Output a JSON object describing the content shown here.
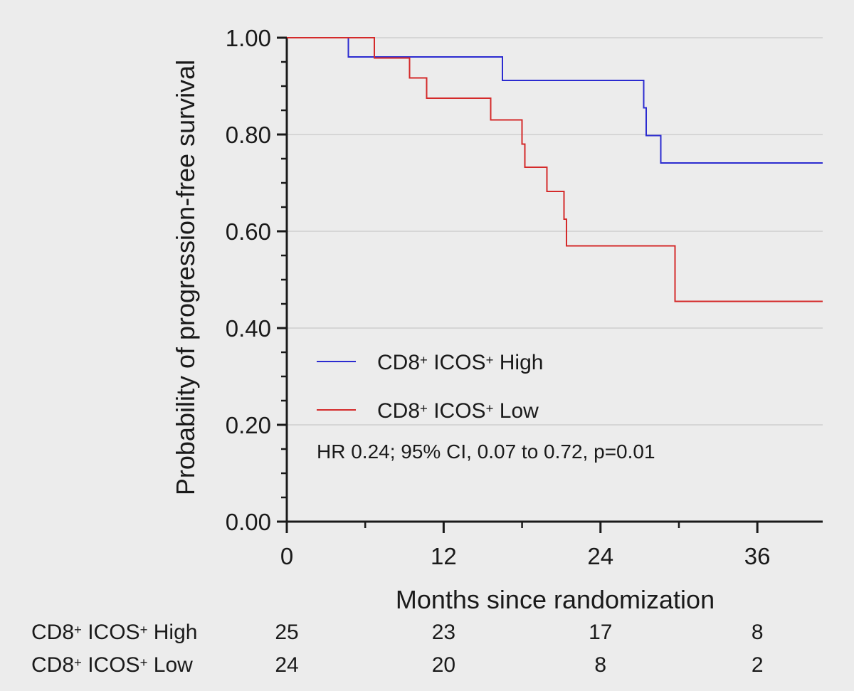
{
  "chart_data": {
    "type": "line",
    "subtype": "kaplan-meier step",
    "title": "",
    "xlabel": "Months since randomization",
    "ylabel": "Probability of progression-free survival",
    "xlim": [
      0,
      41
    ],
    "ylim": [
      0,
      1
    ],
    "x_ticks": [
      0,
      12,
      24,
      36
    ],
    "x_tick_labels": [
      "0",
      "12",
      "24",
      "36"
    ],
    "x_minor_ticks": [
      6,
      18,
      30
    ],
    "y_ticks": [
      0,
      0.2,
      0.4,
      0.6,
      0.8,
      1.0
    ],
    "y_tick_labels": [
      "0.00",
      "0.20",
      "0.40",
      "0.60",
      "0.80",
      "1.00"
    ],
    "y_minor_ticks": [
      0.05,
      0.1,
      0.15,
      0.25,
      0.3,
      0.35,
      0.45,
      0.5,
      0.55,
      0.65,
      0.7,
      0.75,
      0.85,
      0.9,
      0.95
    ],
    "grid": "horizontal",
    "legend_position": "lower-left inside",
    "series": [
      {
        "name_parts": [
          "CD8",
          "+",
          " ICOS",
          "+",
          " High"
        ],
        "color": "#2b2bd0",
        "steps": [
          [
            0,
            1.0
          ],
          [
            4.7,
            0.96
          ],
          [
            16.5,
            0.912
          ],
          [
            27.3,
            0.855
          ],
          [
            27.5,
            0.798
          ],
          [
            28.6,
            0.741
          ],
          [
            41,
            0.741
          ]
        ]
      },
      {
        "name_parts": [
          "CD8",
          "+",
          " ICOS",
          "+",
          " Low"
        ],
        "color": "#d42a2a",
        "steps": [
          [
            0,
            1.0
          ],
          [
            6.7,
            0.958
          ],
          [
            9.4,
            0.917
          ],
          [
            10.7,
            0.875
          ],
          [
            15.6,
            0.83
          ],
          [
            18.0,
            0.78
          ],
          [
            18.2,
            0.732
          ],
          [
            19.9,
            0.682
          ],
          [
            21.2,
            0.625
          ],
          [
            21.4,
            0.57
          ],
          [
            29.7,
            0.455
          ],
          [
            41,
            0.455
          ]
        ]
      }
    ],
    "annotation": "HR 0.24; 95% CI, 0.07 to 0.72, p=0.01",
    "risk_table": {
      "at_times": [
        0,
        12,
        24,
        36
      ],
      "rows": [
        {
          "label_parts": [
            "CD8",
            "+",
            " ICOS",
            "+",
            " High"
          ],
          "values": [
            "25",
            "23",
            "17",
            "8"
          ]
        },
        {
          "label_parts": [
            "CD8",
            "+",
            " ICOS",
            "+",
            " Low"
          ],
          "values": [
            "24",
            "20",
            "8",
            "2"
          ]
        }
      ]
    }
  }
}
